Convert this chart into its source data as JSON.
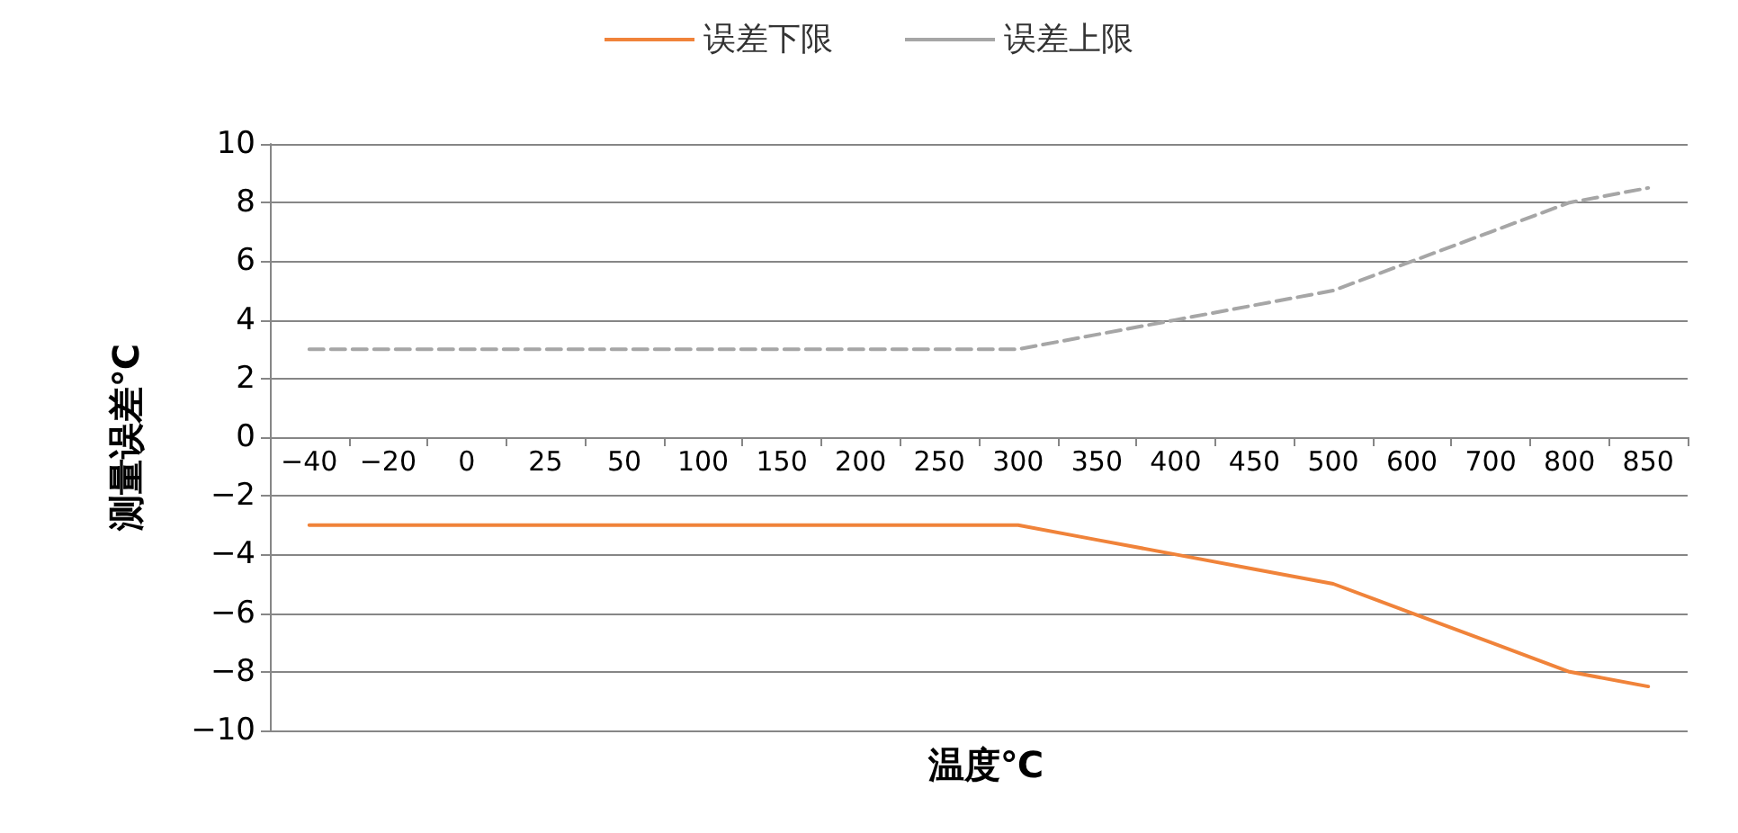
{
  "chart_data": {
    "type": "line",
    "xlabel": "温度℃",
    "ylabel": "测量误差℃",
    "categories": [
      "−40",
      "−20",
      "0",
      "25",
      "50",
      "100",
      "150",
      "200",
      "250",
      "300",
      "350",
      "400",
      "450",
      "500",
      "600",
      "700",
      "800",
      "850"
    ],
    "series": [
      {
        "name": "误差下限",
        "color": "#f0833a",
        "line_style": "solid",
        "values": [
          -3,
          -3,
          -3,
          -3,
          -3,
          -3,
          -3,
          -3,
          -3,
          -3,
          -3.5,
          -4,
          -4.5,
          -5,
          -6,
          -7,
          -8,
          -8.5
        ]
      },
      {
        "name": "误差上限",
        "color": "#a6a6a6",
        "line_style": "dashed",
        "values": [
          3,
          3,
          3,
          3,
          3,
          3,
          3,
          3,
          3,
          3,
          3.5,
          4,
          4.5,
          5,
          6,
          7,
          8,
          8.5
        ]
      }
    ],
    "ylim": [
      -10,
      10
    ],
    "yticks": [
      -10,
      -8,
      -6,
      -4,
      -2,
      0,
      2,
      4,
      6,
      8,
      10
    ],
    "grid": "y",
    "legend": "top",
    "marker": "none"
  }
}
